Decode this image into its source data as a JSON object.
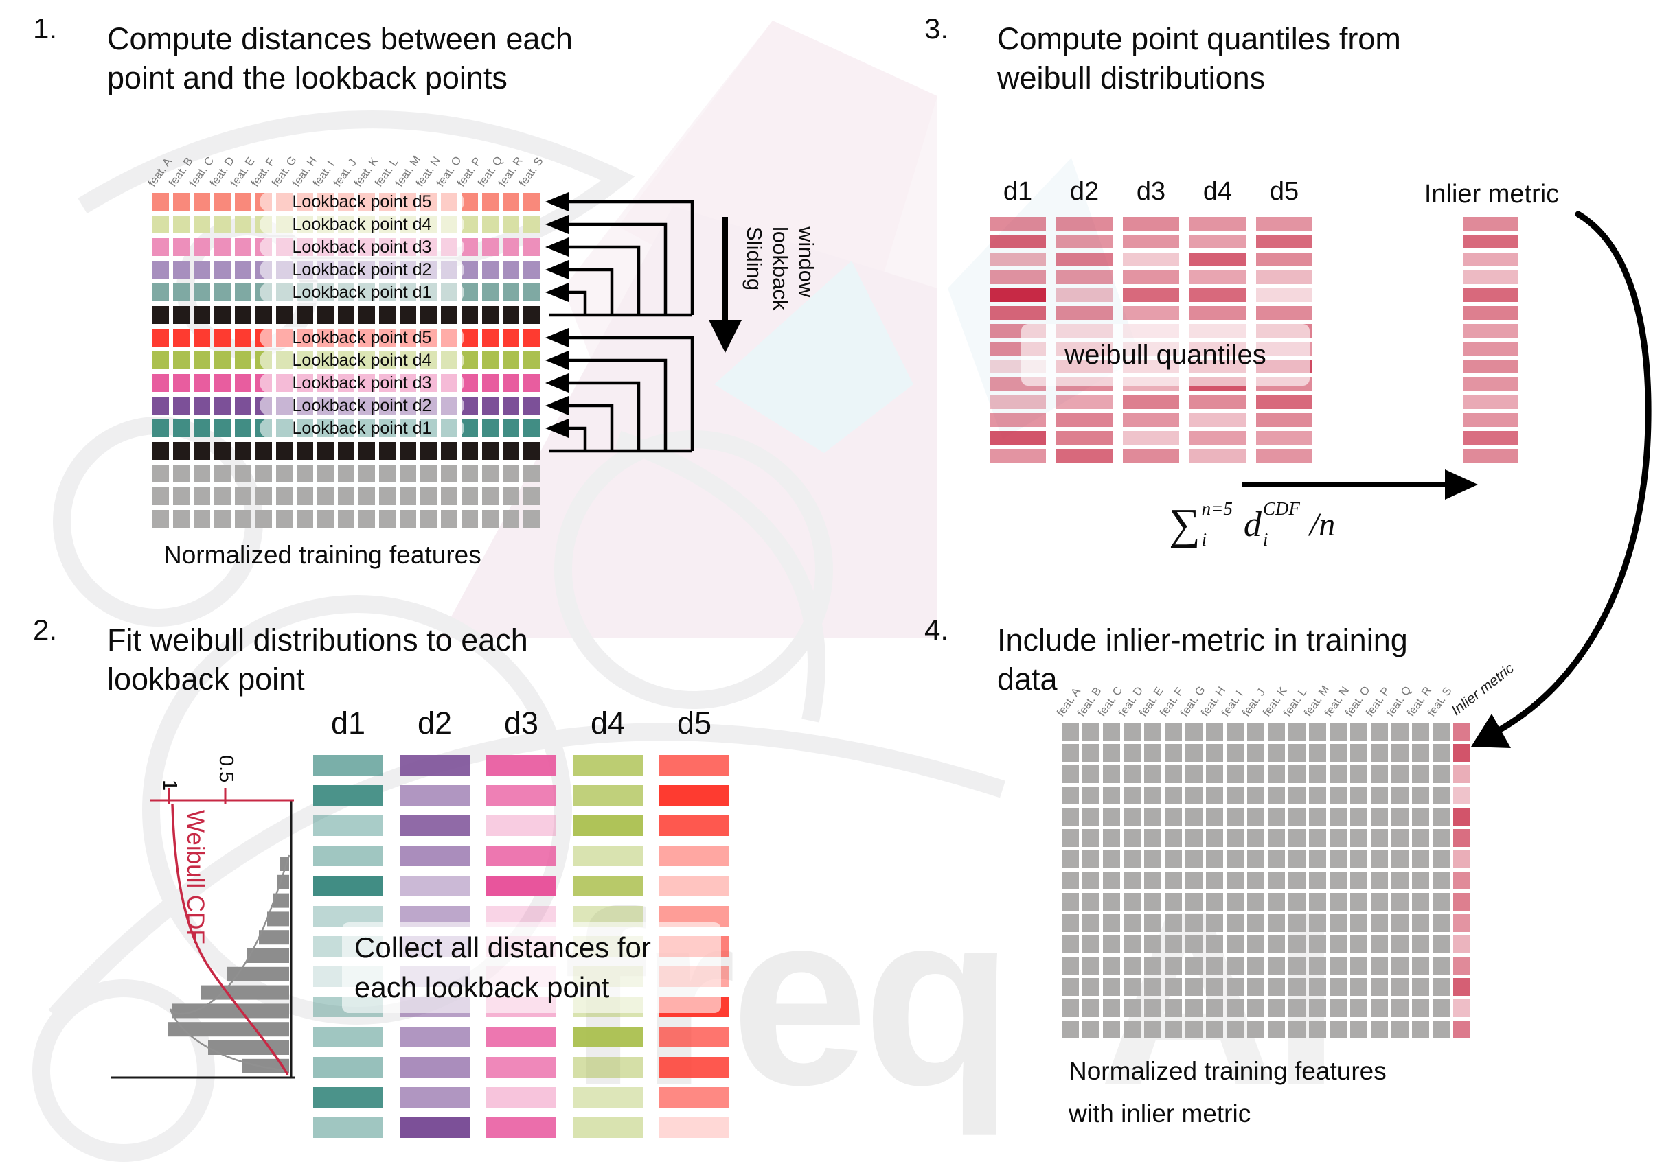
{
  "colors": {
    "crimson": "#C72945",
    "black_row": "#211A18",
    "gray_cell": "#ACABAA",
    "hist_bar": "#8D8D8D",
    "light": {
      "d5": "#F9897B",
      "d4": "#D8E0A5",
      "d3": "#ED8FBB",
      "d2": "#A78FBE",
      "d1": "#7FA9A3"
    },
    "strong": {
      "d5": "#FE3B30",
      "d4": "#ABC04F",
      "d3": "#E85D9F",
      "d2": "#7C5098",
      "d1": "#418D84"
    }
  },
  "panel1": {
    "number": "1.",
    "title_line1": "Compute distances between each",
    "title_line2": "point and the lookback points",
    "features": [
      "feat. A",
      "feat. B",
      "feat. C",
      "feat. D",
      "feat. E",
      "feat. F",
      "feat. G",
      "feat. H",
      "feat. I",
      "feat. J",
      "feat. K",
      "feat. L",
      "feat. M",
      "feat. N",
      "feat. O",
      "feat. P",
      "feat. Q",
      "feat. R",
      "feat. S"
    ],
    "rows": [
      {
        "type": "lookback",
        "tone": "light",
        "d": "d5",
        "label": "Lookback point d5"
      },
      {
        "type": "lookback",
        "tone": "light",
        "d": "d4",
        "label": "Lookback point d4"
      },
      {
        "type": "lookback",
        "tone": "light",
        "d": "d3",
        "label": "Lookback point d3"
      },
      {
        "type": "lookback",
        "tone": "light",
        "d": "d2",
        "label": "Lookback point d2"
      },
      {
        "type": "lookback",
        "tone": "light",
        "d": "d1",
        "label": "Lookback point d1"
      },
      {
        "type": "black"
      },
      {
        "type": "lookback",
        "tone": "strong",
        "d": "d5",
        "label": "Lookback point d5"
      },
      {
        "type": "lookback",
        "tone": "strong",
        "d": "d4",
        "label": "Lookback point d4"
      },
      {
        "type": "lookback",
        "tone": "strong",
        "d": "d3",
        "label": "Lookback point d3"
      },
      {
        "type": "lookback",
        "tone": "strong",
        "d": "d2",
        "label": "Lookback point d2"
      },
      {
        "type": "lookback",
        "tone": "strong",
        "d": "d1",
        "label": "Lookback point d1"
      },
      {
        "type": "black"
      },
      {
        "type": "gray"
      },
      {
        "type": "gray"
      },
      {
        "type": "gray"
      }
    ],
    "sliding_lines": [
      "Sliding",
      "lookback",
      "window"
    ],
    "caption": "Normalized training features"
  },
  "panel2": {
    "number": "2.",
    "title_line1": "Fit weibull distributions to each",
    "title_line2": "lookback point",
    "overlay_line1": "Collect all distances for",
    "overlay_line2": "each lookback point",
    "columns": [
      {
        "label": "d1",
        "color": "#418D84",
        "alphas": [
          0.7,
          0.95,
          0.45,
          0.5,
          1.0,
          0.35,
          0.3,
          0.18,
          0.42,
          0.5,
          0.55,
          0.95,
          0.5
        ]
      },
      {
        "label": "d2",
        "color": "#7C5098",
        "alphas": [
          0.9,
          0.6,
          0.85,
          0.65,
          0.4,
          0.5,
          0.45,
          0.35,
          0.55,
          0.6,
          0.65,
          0.6,
          1.0
        ]
      },
      {
        "label": "d3",
        "color": "#E8559C",
        "alphas": [
          0.9,
          0.75,
          0.3,
          0.8,
          1.0,
          0.25,
          0.3,
          0.2,
          0.45,
          0.8,
          0.7,
          0.35,
          0.85
        ]
      },
      {
        "label": "d4",
        "color": "#ABC04F",
        "alphas": [
          0.8,
          0.75,
          0.95,
          0.45,
          0.85,
          0.4,
          0.3,
          0.35,
          0.45,
          0.95,
          0.5,
          0.4,
          0.45
        ]
      },
      {
        "label": "d5",
        "color": "#FE3B30",
        "alphas": [
          0.75,
          1.0,
          0.85,
          0.45,
          0.3,
          0.5,
          0.65,
          0.45,
          1.0,
          0.7,
          0.85,
          0.6,
          0.2
        ]
      }
    ],
    "plot": {
      "cdf_label": "Weibull CDF",
      "tick_1": "1",
      "tick_05": "0.5",
      "bar_lengths": [
        14,
        18,
        24,
        32,
        44,
        62,
        90,
        128,
        170,
        176,
        118,
        68
      ]
    }
  },
  "panel3": {
    "number": "3.",
    "title_line1": "Compute point quantiles from",
    "title_line2": "weibull distributions",
    "pill": "weibull quantiles",
    "inlier_label": "Inlier metric",
    "columns": [
      {
        "label": "d1",
        "alphas": [
          0.55,
          0.75,
          0.38,
          0.5,
          1.0,
          0.72,
          0.55,
          0.55,
          0.2,
          0.5,
          0.33,
          0.5,
          0.8,
          0.5
        ]
      },
      {
        "label": "d2",
        "alphas": [
          0.55,
          0.5,
          0.62,
          0.5,
          0.3,
          0.55,
          0.5,
          0.58,
          0.65,
          0.55,
          0.42,
          0.58,
          0.6,
          0.7
        ]
      },
      {
        "label": "d3",
        "alphas": [
          0.55,
          0.5,
          0.25,
          0.5,
          0.7,
          0.45,
          0.3,
          0.35,
          0.45,
          0.38,
          0.6,
          0.5,
          0.28,
          0.55
        ]
      },
      {
        "label": "d4",
        "alphas": [
          0.5,
          0.45,
          0.75,
          0.42,
          0.7,
          0.55,
          0.38,
          0.52,
          0.65,
          0.8,
          0.55,
          0.3,
          0.45,
          0.35
        ]
      },
      {
        "label": "d5",
        "alphas": [
          0.5,
          0.7,
          0.55,
          0.32,
          0.18,
          0.55,
          0.6,
          0.5,
          0.85,
          0.55,
          0.7,
          0.55,
          0.45,
          0.5
        ]
      }
    ],
    "inlier_alphas": [
      0.55,
      0.7,
      0.4,
      0.32,
      0.7,
      0.6,
      0.45,
      0.5,
      0.55,
      0.5,
      0.4,
      0.5,
      0.68,
      0.55
    ],
    "formula": {
      "sum": "∑",
      "sup": "n=5",
      "sub": "i",
      "var": "d",
      "var_sup": "CDF",
      "var_sub": "i",
      "tail": "/n"
    }
  },
  "panel4": {
    "number": "4.",
    "title_line1": "Include inlier-metric in training",
    "title_line2": "data",
    "features": [
      "feat. A",
      "feat. B",
      "feat. C",
      "feat. D",
      "feat. E",
      "feat. F",
      "feat. G",
      "feat. H",
      "feat. I",
      "feat. J",
      "feat. K",
      "feat. L",
      "feat. M",
      "feat. N",
      "feat. O",
      "feat. P",
      "feat. Q",
      "feat. R",
      "feat. S"
    ],
    "inlier_label": "Inlier metric",
    "n_rows": 15,
    "inlier_alphas": [
      0.62,
      0.8,
      0.38,
      0.28,
      0.8,
      0.68,
      0.38,
      0.55,
      0.6,
      0.5,
      0.35,
      0.55,
      0.75,
      0.3,
      0.62
    ],
    "caption_line1": "Normalized training features",
    "caption_line2": "with inlier metric"
  },
  "watermark": {
    "text1": "freq",
    "text2": "AI"
  }
}
